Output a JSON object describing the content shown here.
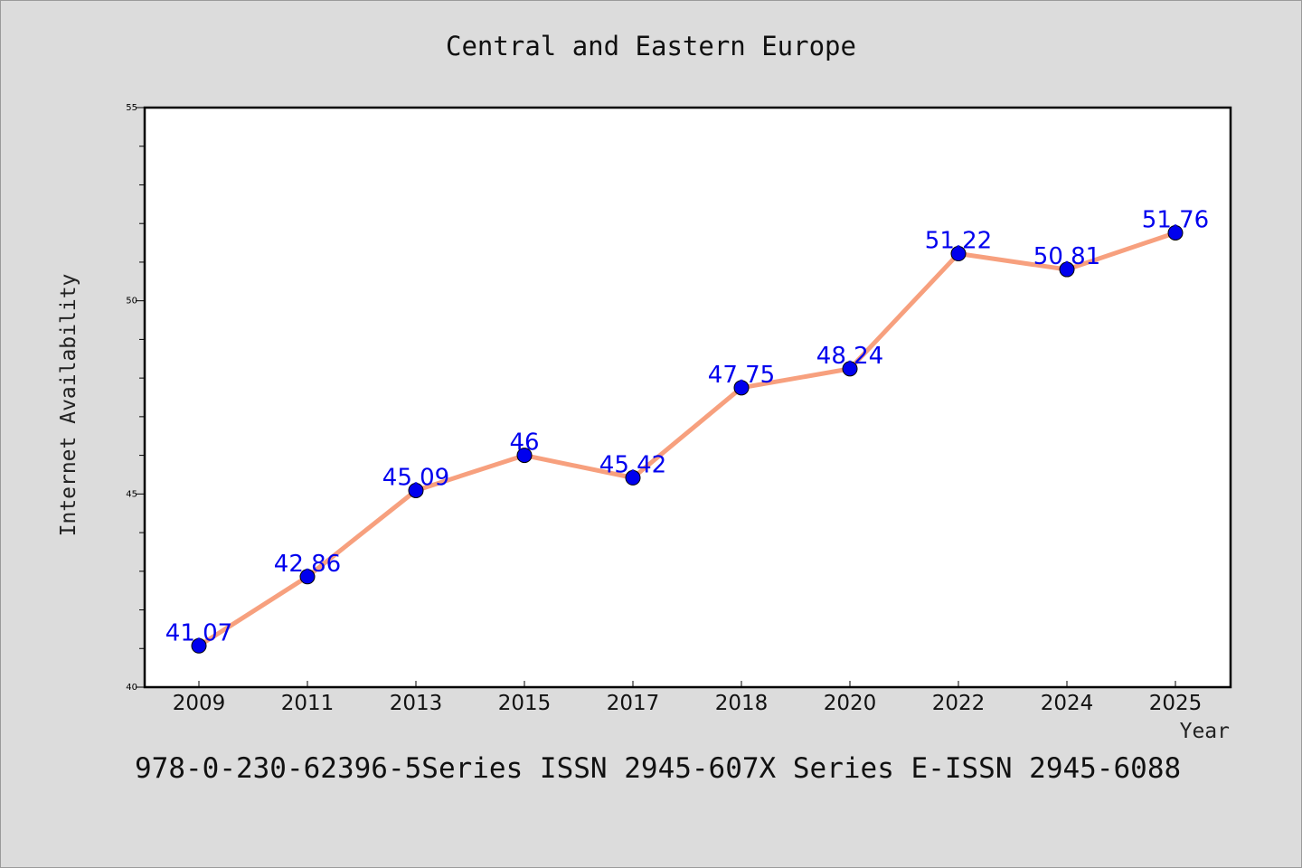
{
  "footer_text": "978-0-230-62396-5Series ISSN 2945-607X Series E-ISSN 2945-6088",
  "chart_data": {
    "type": "line",
    "title": "Central and Eastern Europe",
    "xlabel": "Year",
    "ylabel": "Internet Availability",
    "categories": [
      "2009",
      "2011",
      "2013",
      "2015",
      "2017",
      "2018",
      "2020",
      "2022",
      "2024",
      "2025"
    ],
    "values": [
      41.07,
      42.86,
      45.09,
      46,
      45.42,
      47.75,
      48.24,
      51.22,
      50.81,
      51.76
    ],
    "value_labels": [
      "41.07",
      "42.86",
      "45.09",
      "46",
      "45.42",
      "47.75",
      "48.24",
      "51.22",
      "50.81",
      "51.76"
    ],
    "ylim": [
      40,
      55
    ],
    "y_major_ticks": [
      40,
      45,
      50,
      55
    ],
    "y_minor_step": 1,
    "grid": false,
    "legend": "none",
    "colors": {
      "line": "#f7a07e",
      "marker": "#0000ee",
      "label": "#0000ee",
      "plot_background": "#ffffff",
      "page_background": "#dcdcdc"
    }
  }
}
